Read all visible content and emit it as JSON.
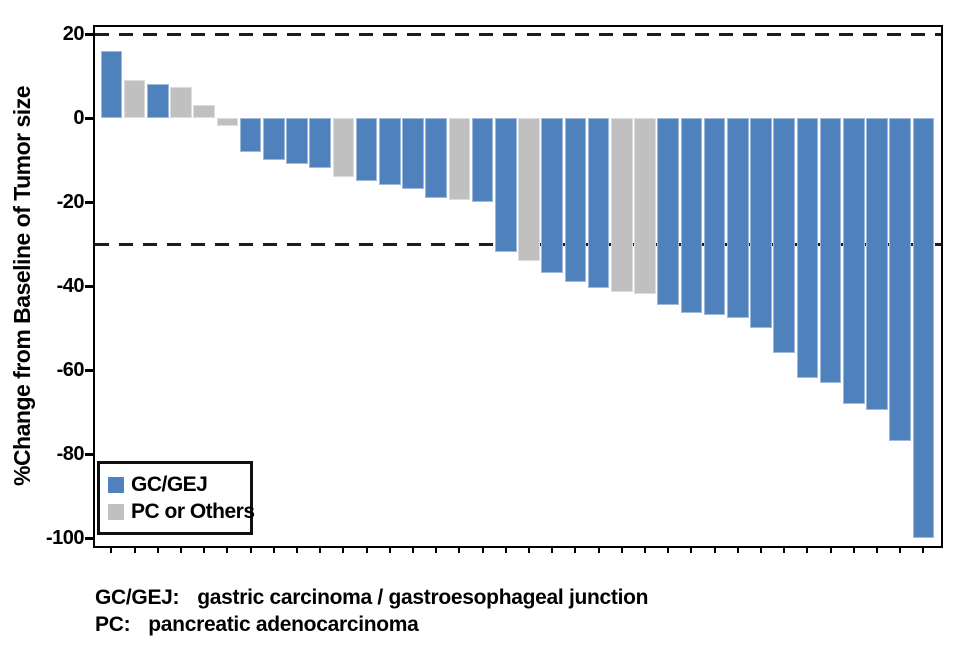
{
  "chart_data": {
    "type": "bar",
    "subtype": "waterfall",
    "title": "",
    "xlabel": "",
    "ylabel": "%Change from Baseline of Tumor size",
    "ylim": [
      -102,
      22
    ],
    "yticks": [
      20,
      0,
      -20,
      -40,
      -60,
      -80,
      -100
    ],
    "reference_lines": [
      20,
      -30
    ],
    "grid": false,
    "legend_position": "inside-bottom-left",
    "series_colors": {
      "GC/GEJ": "#4f81bd",
      "PC or Others": "#c0c0c0"
    },
    "bars": [
      {
        "value": 16,
        "group": "GC/GEJ"
      },
      {
        "value": 9,
        "group": "PC or Others"
      },
      {
        "value": 8,
        "group": "GC/GEJ"
      },
      {
        "value": 7.5,
        "group": "PC or Others"
      },
      {
        "value": 3,
        "group": "PC or Others"
      },
      {
        "value": -2,
        "group": "PC or Others"
      },
      {
        "value": -8,
        "group": "GC/GEJ"
      },
      {
        "value": -10,
        "group": "GC/GEJ"
      },
      {
        "value": -11,
        "group": "GC/GEJ"
      },
      {
        "value": -12,
        "group": "GC/GEJ"
      },
      {
        "value": -14,
        "group": "PC or Others"
      },
      {
        "value": -15,
        "group": "GC/GEJ"
      },
      {
        "value": -16,
        "group": "GC/GEJ"
      },
      {
        "value": -17,
        "group": "GC/GEJ"
      },
      {
        "value": -19,
        "group": "GC/GEJ"
      },
      {
        "value": -19.5,
        "group": "PC or Others"
      },
      {
        "value": -20,
        "group": "GC/GEJ"
      },
      {
        "value": -32,
        "group": "GC/GEJ"
      },
      {
        "value": -34,
        "group": "PC or Others"
      },
      {
        "value": -37,
        "group": "GC/GEJ"
      },
      {
        "value": -39,
        "group": "GC/GEJ"
      },
      {
        "value": -40.5,
        "group": "GC/GEJ"
      },
      {
        "value": -41.5,
        "group": "PC or Others"
      },
      {
        "value": -42,
        "group": "PC or Others"
      },
      {
        "value": -44.5,
        "group": "GC/GEJ"
      },
      {
        "value": -46.5,
        "group": "GC/GEJ"
      },
      {
        "value": -47,
        "group": "GC/GEJ"
      },
      {
        "value": -47.5,
        "group": "GC/GEJ"
      },
      {
        "value": -50,
        "group": "GC/GEJ"
      },
      {
        "value": -56,
        "group": "GC/GEJ"
      },
      {
        "value": -62,
        "group": "GC/GEJ"
      },
      {
        "value": -63,
        "group": "GC/GEJ"
      },
      {
        "value": -68,
        "group": "GC/GEJ"
      },
      {
        "value": -69.5,
        "group": "GC/GEJ"
      },
      {
        "value": -77,
        "group": "GC/GEJ"
      },
      {
        "value": -100,
        "group": "GC/GEJ"
      }
    ]
  },
  "legend": {
    "items": [
      {
        "label": "GC/GEJ",
        "color": "#4f81bd"
      },
      {
        "label": "PC or Others",
        "color": "#c0c0c0"
      }
    ]
  },
  "footnotes": [
    {
      "term": "GC/GEJ:",
      "definition": "gastric carcinoma / gastroesophageal junction"
    },
    {
      "term": "PC:",
      "definition": "pancreatic adenocarcinoma"
    }
  ],
  "colors": {
    "bar_blue": "#4f81bd",
    "bar_gray": "#c0c0c0",
    "axis": "#000000",
    "background": "#ffffff"
  }
}
